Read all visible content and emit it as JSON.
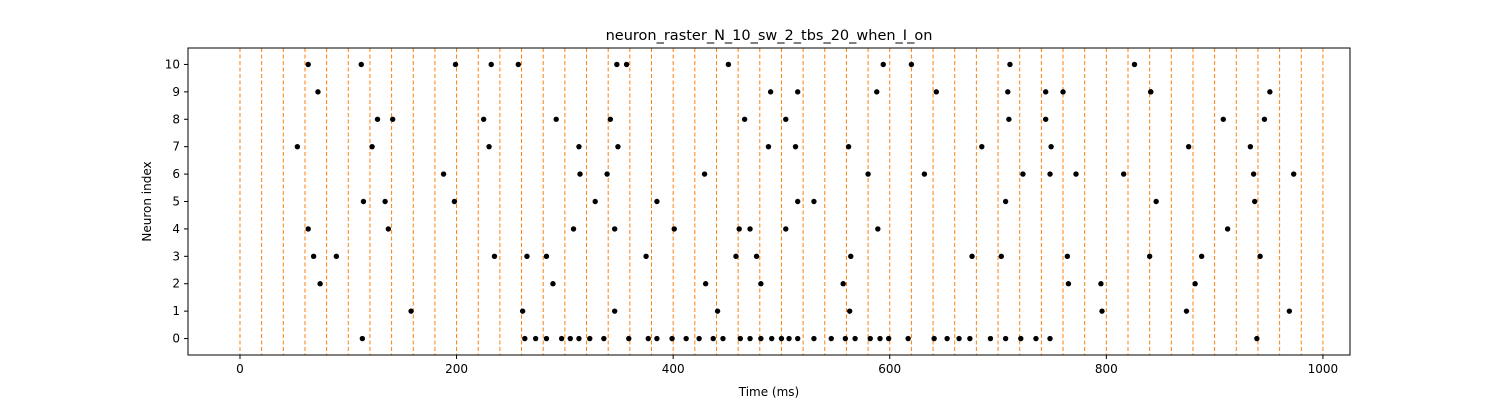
{
  "chart_data": {
    "type": "scatter",
    "title": "neuron_raster_N_10_sw_2_tbs_20_when_I_on",
    "xlabel": "Time (ms)",
    "ylabel": "Neuron index",
    "xlim": [
      -48,
      1025
    ],
    "ylim": [
      -0.6,
      10.6
    ],
    "xticks": [
      0,
      200,
      400,
      600,
      800,
      1000
    ],
    "yticks": [
      0,
      1,
      2,
      3,
      4,
      5,
      6,
      7,
      8,
      9,
      10
    ],
    "grid": false,
    "legend": "none",
    "vlines": {
      "x": [
        0,
        20,
        40,
        60,
        80,
        100,
        120,
        140,
        160,
        180,
        200,
        220,
        240,
        260,
        280,
        300,
        320,
        340,
        360,
        380,
        400,
        420,
        440,
        460,
        480,
        500,
        520,
        540,
        560,
        580,
        600,
        620,
        640,
        660,
        680,
        700,
        720,
        740,
        760,
        780,
        800,
        820,
        840,
        860,
        880,
        900,
        920,
        940,
        960,
        980,
        1000
      ],
      "color": "#ff7f0e",
      "style": "dashed"
    },
    "marker_color": "#000000",
    "series": [
      {
        "points": [
          [
            63,
            10
          ],
          [
            112,
            10
          ],
          [
            199,
            10
          ],
          [
            232,
            10
          ],
          [
            257,
            10
          ],
          [
            348,
            10
          ],
          [
            357,
            10
          ],
          [
            451,
            10
          ],
          [
            594,
            10
          ],
          [
            620,
            10
          ],
          [
            711,
            10
          ],
          [
            826,
            10
          ],
          [
            841,
            9
          ],
          [
            72,
            9
          ],
          [
            490,
            9
          ],
          [
            515,
            9
          ],
          [
            588,
            9
          ],
          [
            643,
            9
          ],
          [
            709,
            9
          ],
          [
            744,
            9
          ],
          [
            760,
            9
          ],
          [
            841,
            9
          ],
          [
            951,
            9
          ],
          [
            127,
            8
          ],
          [
            141,
            8
          ],
          [
            225,
            8
          ],
          [
            292,
            8
          ],
          [
            342,
            8
          ],
          [
            466,
            8
          ],
          [
            504,
            8
          ],
          [
            710,
            8
          ],
          [
            744,
            8
          ],
          [
            908,
            8
          ],
          [
            946,
            8
          ],
          [
            53,
            7
          ],
          [
            122,
            7
          ],
          [
            230,
            7
          ],
          [
            313,
            7
          ],
          [
            349,
            7
          ],
          [
            488,
            7
          ],
          [
            513,
            7
          ],
          [
            562,
            7
          ],
          [
            685,
            7
          ],
          [
            749,
            7
          ],
          [
            876,
            7
          ],
          [
            933,
            7
          ],
          [
            188,
            6
          ],
          [
            314,
            6
          ],
          [
            339,
            6
          ],
          [
            429,
            6
          ],
          [
            580,
            6
          ],
          [
            632,
            6
          ],
          [
            723,
            6
          ],
          [
            748,
            6
          ],
          [
            772,
            6
          ],
          [
            816,
            6
          ],
          [
            936,
            6
          ],
          [
            973,
            6
          ],
          [
            114,
            5
          ],
          [
            134,
            5
          ],
          [
            198,
            5
          ],
          [
            328,
            5
          ],
          [
            385,
            5
          ],
          [
            515,
            5
          ],
          [
            530,
            5
          ],
          [
            707,
            5
          ],
          [
            846,
            5
          ],
          [
            937,
            5
          ],
          [
            63,
            4
          ],
          [
            137,
            4
          ],
          [
            308,
            4
          ],
          [
            346,
            4
          ],
          [
            401,
            4
          ],
          [
            461,
            4
          ],
          [
            471,
            4
          ],
          [
            504,
            4
          ],
          [
            589,
            4
          ],
          [
            912,
            4
          ],
          [
            68,
            3
          ],
          [
            89,
            3
          ],
          [
            235,
            3
          ],
          [
            265,
            3
          ],
          [
            283,
            3
          ],
          [
            375,
            3
          ],
          [
            458,
            3
          ],
          [
            477,
            3
          ],
          [
            564,
            3
          ],
          [
            676,
            3
          ],
          [
            703,
            3
          ],
          [
            764,
            3
          ],
          [
            840,
            3
          ],
          [
            888,
            3
          ],
          [
            942,
            3
          ],
          [
            74,
            2
          ],
          [
            289,
            2
          ],
          [
            430,
            2
          ],
          [
            481,
            2
          ],
          [
            557,
            2
          ],
          [
            765,
            2
          ],
          [
            795,
            2
          ],
          [
            882,
            2
          ],
          [
            158,
            1
          ],
          [
            261,
            1
          ],
          [
            346,
            1
          ],
          [
            441,
            1
          ],
          [
            563,
            1
          ],
          [
            796,
            1
          ],
          [
            874,
            1
          ],
          [
            969,
            1
          ],
          [
            113,
            0
          ],
          [
            263,
            0
          ],
          [
            273,
            0
          ],
          [
            283,
            0
          ],
          [
            297,
            0
          ],
          [
            305,
            0
          ],
          [
            313,
            0
          ],
          [
            323,
            0
          ],
          [
            336,
            0
          ],
          [
            359,
            0
          ],
          [
            377,
            0
          ],
          [
            385,
            0
          ],
          [
            399,
            0
          ],
          [
            412,
            0
          ],
          [
            424,
            0
          ],
          [
            437,
            0
          ],
          [
            446,
            0
          ],
          [
            462,
            0
          ],
          [
            471,
            0
          ],
          [
            481,
            0
          ],
          [
            491,
            0
          ],
          [
            500,
            0
          ],
          [
            507,
            0
          ],
          [
            515,
            0
          ],
          [
            530,
            0
          ],
          [
            546,
            0
          ],
          [
            559,
            0
          ],
          [
            568,
            0
          ],
          [
            582,
            0
          ],
          [
            591,
            0
          ],
          [
            599,
            0
          ],
          [
            617,
            0
          ],
          [
            641,
            0
          ],
          [
            653,
            0
          ],
          [
            664,
            0
          ],
          [
            674,
            0
          ],
          [
            693,
            0
          ],
          [
            707,
            0
          ],
          [
            721,
            0
          ],
          [
            735,
            0
          ],
          [
            748,
            0
          ],
          [
            939,
            0
          ]
        ]
      }
    ]
  }
}
